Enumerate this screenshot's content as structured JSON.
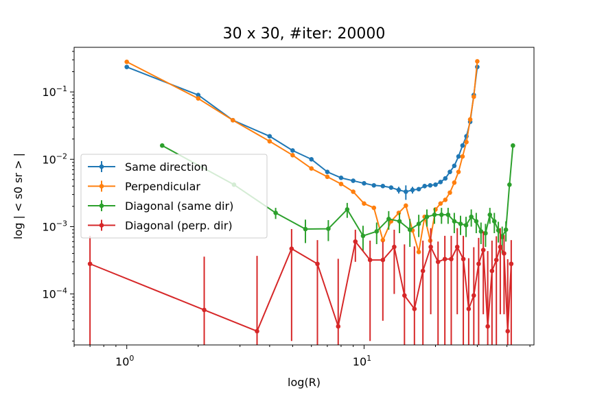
{
  "chart_data": {
    "type": "line",
    "title": "30 x 30, #iter: 20000",
    "xlabel": "log(R)",
    "ylabel": "log | < s0 sr > |",
    "xscale": "log",
    "yscale": "log",
    "xlim": [
      0.6,
      52
    ],
    "ylim": [
      1.75e-05,
      0.46
    ],
    "grid": false,
    "legend_position": "center-left",
    "x_major_ticks": [
      {
        "value": 1,
        "label": "10",
        "exp": "0"
      },
      {
        "value": 10,
        "label": "10",
        "exp": "1"
      }
    ],
    "y_major_ticks": [
      {
        "value": 0.0001,
        "label": "10",
        "exp": "−4"
      },
      {
        "value": 0.001,
        "label": "10",
        "exp": "−3"
      },
      {
        "value": 0.01,
        "label": "10",
        "exp": "−2"
      },
      {
        "value": 0.1,
        "label": "10",
        "exp": "−1"
      }
    ],
    "series": [
      {
        "name": "Same direction",
        "color": "#1f77b4",
        "points": [
          [
            1.0,
            0.235
          ],
          [
            2.0,
            0.09
          ],
          [
            2.8,
            0.038
          ],
          [
            4.0,
            0.022
          ],
          [
            5.0,
            0.0135
          ],
          [
            6.0,
            0.01
          ],
          [
            7.0,
            0.0065
          ],
          [
            8.0,
            0.0053
          ],
          [
            9.0,
            0.0048
          ],
          [
            10.0,
            0.0044
          ],
          [
            11.0,
            0.0041
          ],
          [
            12.0,
            0.004
          ],
          [
            13.0,
            0.0038
          ],
          [
            14.0,
            0.0035
          ],
          [
            15.0,
            0.0033
          ],
          [
            16.0,
            0.0035
          ],
          [
            17.0,
            0.0036
          ],
          [
            18.0,
            0.004
          ],
          [
            19.0,
            0.0041
          ],
          [
            20.0,
            0.0042
          ],
          [
            21.0,
            0.0046
          ],
          [
            22.0,
            0.0052
          ],
          [
            23.0,
            0.0065
          ],
          [
            24.0,
            0.008
          ],
          [
            25.0,
            0.011
          ],
          [
            26.0,
            0.016
          ],
          [
            27.0,
            0.022
          ],
          [
            28.0,
            0.036
          ],
          [
            29.0,
            0.09
          ],
          [
            30.0,
            0.235
          ]
        ],
        "errors": [
          0,
          0,
          0,
          0,
          0,
          0,
          0,
          0,
          0,
          0,
          0,
          0,
          0,
          0.0004,
          0.0008,
          0.0004,
          0,
          0.0003,
          0,
          0,
          0,
          0,
          0,
          0,
          0,
          0,
          0,
          0,
          0,
          0
        ]
      },
      {
        "name": "Perpendicular",
        "color": "#ff7f0e",
        "points": [
          [
            1.0,
            0.28
          ],
          [
            2.0,
            0.08
          ],
          [
            2.8,
            0.038
          ],
          [
            4.0,
            0.0185
          ],
          [
            5.0,
            0.0115
          ],
          [
            6.0,
            0.0073
          ],
          [
            7.0,
            0.0055
          ],
          [
            8.0,
            0.0043
          ],
          [
            9.0,
            0.0033
          ],
          [
            10.0,
            0.0022
          ],
          [
            11.0,
            0.0019
          ],
          [
            12.0,
            0.00063
          ],
          [
            13.0,
            0.0012
          ],
          [
            14.0,
            0.0016
          ],
          [
            15.0,
            0.00205
          ],
          [
            16.0,
            0.00088
          ],
          [
            17.0,
            0.00042
          ],
          [
            18.0,
            0.0014
          ],
          [
            19.0,
            0.00062
          ],
          [
            20.0,
            0.0018
          ],
          [
            21.0,
            0.0022
          ],
          [
            22.0,
            0.0025
          ],
          [
            23.0,
            0.0032
          ],
          [
            24.0,
            0.0045
          ],
          [
            25.0,
            0.0065
          ],
          [
            26.0,
            0.011
          ],
          [
            27.0,
            0.018
          ],
          [
            28.0,
            0.039
          ],
          [
            29.0,
            0.085
          ],
          [
            30.0,
            0.285
          ]
        ],
        "errors": [
          0,
          0,
          0,
          0,
          0,
          0,
          0,
          0,
          0,
          0,
          0,
          0,
          0,
          0,
          0,
          0,
          0,
          0,
          0,
          0,
          0,
          0,
          0,
          0,
          0,
          0,
          0,
          0,
          0,
          0
        ]
      },
      {
        "name": "Diagonal (same dir)",
        "color": "#2ca02c",
        "points": [
          [
            1.41,
            0.016
          ],
          [
            2.83,
            0.0042
          ],
          [
            4.24,
            0.0016
          ],
          [
            5.66,
            0.00092
          ],
          [
            7.07,
            0.00093
          ],
          [
            8.49,
            0.0018
          ],
          [
            9.9,
            0.00073
          ],
          [
            11.3,
            0.00085
          ],
          [
            12.7,
            0.0013
          ],
          [
            14.1,
            0.0012
          ],
          [
            15.6,
            0.0009
          ],
          [
            17.0,
            0.0011
          ],
          [
            18.4,
            0.0014
          ],
          [
            19.8,
            0.0015
          ],
          [
            21.2,
            0.0015
          ],
          [
            22.6,
            0.0015
          ],
          [
            24.0,
            0.0012
          ],
          [
            25.5,
            0.0011
          ],
          [
            26.9,
            0.00105
          ],
          [
            28.3,
            0.0014
          ],
          [
            29.7,
            0.0012
          ],
          [
            31.1,
            0.00085
          ],
          [
            32.5,
            0.0008
          ],
          [
            33.9,
            0.0015
          ],
          [
            35.4,
            0.0012
          ],
          [
            36.8,
            0.00088
          ],
          [
            38.2,
            0.0007
          ],
          [
            39.6,
            0.0009
          ],
          [
            41.0,
            0.0042
          ],
          [
            42.4,
            0.016
          ]
        ],
        "errors": [
          0,
          0,
          0.0003,
          0.00035,
          0.00032,
          0.00045,
          0.0003,
          0.0003,
          0.0004,
          0.0004,
          0.0004,
          0.0004,
          0.0004,
          0.0004,
          0.0004,
          0.0004,
          0.0004,
          0.00035,
          0.00035,
          0.0004,
          0.0004,
          0.0003,
          0.0003,
          0.0004,
          0.0004,
          0.0003,
          0.0003,
          0.0003,
          0,
          0
        ]
      },
      {
        "name": "Diagonal (perp. dir)",
        "color": "#d62728",
        "points": [
          [
            0.7,
            0.00028
          ],
          [
            2.12,
            5.8e-05
          ],
          [
            3.54,
            2.8e-05
          ],
          [
            4.95,
            0.00047
          ],
          [
            6.36,
            0.00028
          ],
          [
            7.78,
            3.3e-05
          ],
          [
            9.19,
            0.0006
          ],
          [
            10.6,
            0.00032
          ],
          [
            12.0,
            0.00032
          ],
          [
            13.4,
            0.0005
          ],
          [
            14.8,
            9.5e-05
          ],
          [
            16.3,
            6e-05
          ],
          [
            17.7,
            0.00022
          ],
          [
            19.1,
            0.0005
          ],
          [
            20.5,
            0.0003
          ],
          [
            21.9,
            0.00033
          ],
          [
            23.3,
            0.00033
          ],
          [
            24.7,
            0.0005
          ],
          [
            26.2,
            0.00033
          ],
          [
            27.6,
            6e-05
          ],
          [
            29.0,
            9.5e-05
          ],
          [
            30.4,
            0.00028
          ],
          [
            31.8,
            0.00045
          ],
          [
            33.2,
            3.3e-05
          ],
          [
            34.6,
            0.00022
          ],
          [
            36.1,
            0.00032
          ],
          [
            37.5,
            0.0005
          ],
          [
            38.9,
            0.0004
          ],
          [
            40.3,
            2.8e-05
          ],
          [
            41.7,
            0.00028
          ]
        ],
        "errors": [
          0.00045,
          0.0003,
          0.00034,
          0.00045,
          0.00035,
          0.0003,
          0.0003,
          0.0003,
          0.00028,
          0.0004,
          0.00045,
          0.00045,
          0.0004,
          0.00045,
          0.0003,
          0.0004,
          0.0004,
          0.00045,
          0.0004,
          0.00028,
          0.0004,
          0.0004,
          0.0004,
          0.0004,
          0.0004,
          0.0004,
          0.00045,
          0.00035,
          0.0003,
          0.00035
        ]
      }
    ]
  }
}
